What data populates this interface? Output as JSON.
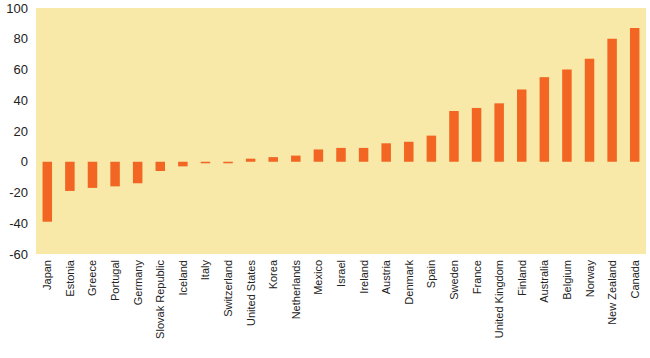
{
  "chart_data": {
    "type": "bar",
    "categories": [
      "Japan",
      "Estonia",
      "Greece",
      "Portugal",
      "Germany",
      "Slovak Republic",
      "Iceland",
      "Italy",
      "Switzerland",
      "United States",
      "Korea",
      "Netherlands",
      "Mexico",
      "Israel",
      "Ireland",
      "Austria",
      "Denmark",
      "Spain",
      "Sweden",
      "France",
      "United Kingdom",
      "Finland",
      "Australia",
      "Belgium",
      "Norway",
      "New Zealand",
      "Canada"
    ],
    "values": [
      -39,
      -19,
      -17,
      -16,
      -14,
      -6,
      -3,
      -1,
      -1,
      2,
      3,
      4,
      8,
      9,
      9,
      12,
      13,
      17,
      33,
      35,
      38,
      47,
      55,
      60,
      67,
      80,
      87
    ],
    "color": "#f26522",
    "ylim": [
      -60,
      100
    ],
    "yticks": [
      -60,
      -40,
      -20,
      0,
      20,
      40,
      60,
      80,
      100
    ],
    "grid": false
  }
}
